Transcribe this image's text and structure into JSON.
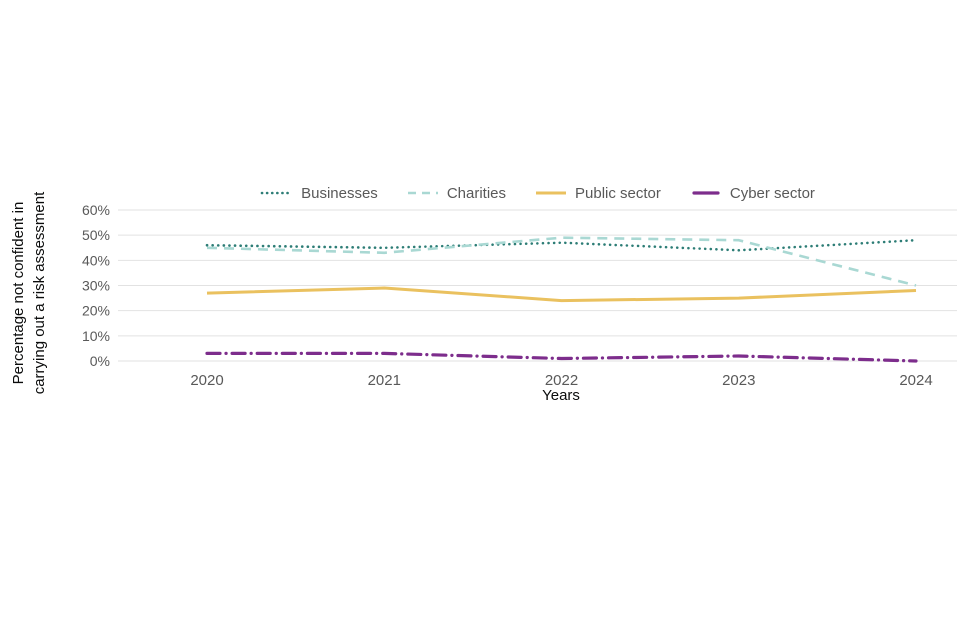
{
  "chart_data": {
    "type": "line",
    "title": "",
    "xlabel": "Years",
    "ylabel": "Percentage not confident in carrying out a risk assessment",
    "ylabel_lines": [
      "Percentage not confident in",
      "carrying out a risk assessment"
    ],
    "x": [
      "2020",
      "2021",
      "2022",
      "2023",
      "2024"
    ],
    "ylim": [
      0,
      60
    ],
    "ytick_step": 10,
    "ytick_suffix": "%",
    "grid": "horizontal",
    "legend_position": "top-center",
    "series": [
      {
        "name": "Businesses",
        "style": "dotted",
        "color": "#2d7d76",
        "values": [
          46,
          45,
          47,
          44,
          48
        ]
      },
      {
        "name": "Charities",
        "style": "dashed",
        "color": "#a9d8d3",
        "values": [
          45,
          43,
          49,
          48,
          30
        ]
      },
      {
        "name": "Public sector",
        "style": "solid",
        "color": "#eac15f",
        "values": [
          27,
          29,
          24,
          25,
          28
        ]
      },
      {
        "name": "Cyber sector",
        "style": "dashdot",
        "color": "#7d2d8c",
        "values": [
          3,
          3,
          1,
          2,
          0
        ]
      }
    ],
    "colors": {
      "gridline": "#e2e2e2",
      "tick_label": "#595959",
      "legend_label": "#595959",
      "axis_title": "#0b0c0c",
      "background": "#ffffff"
    }
  }
}
